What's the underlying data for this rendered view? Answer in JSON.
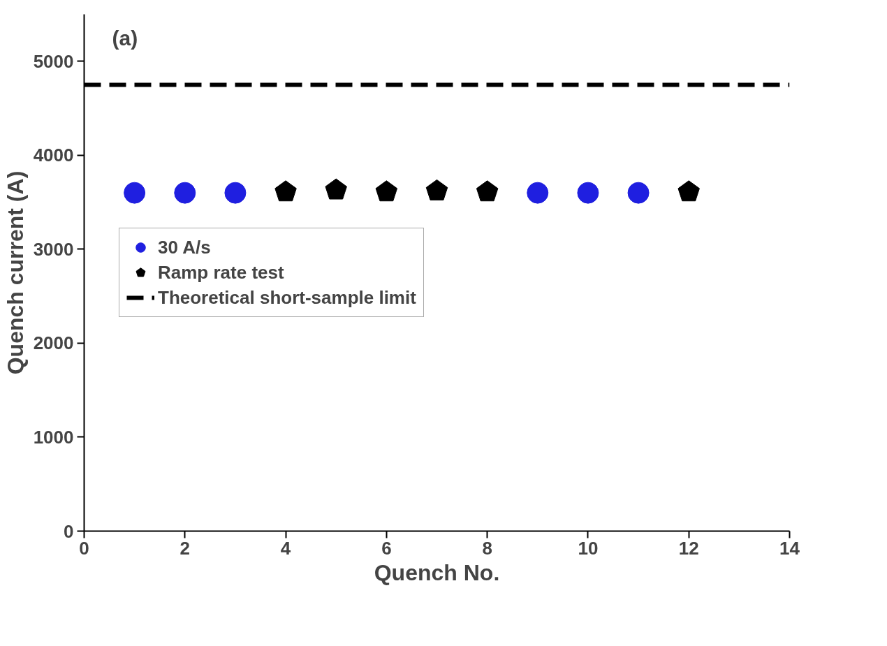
{
  "chart_data": {
    "type": "scatter",
    "xlabel": "Quench No.",
    "ylabel": "Quench current (A)",
    "annotations": [
      "(a)"
    ],
    "xlim": [
      0,
      14
    ],
    "xticks": [
      0,
      2,
      4,
      6,
      8,
      10,
      12,
      14
    ],
    "ylim": [
      0,
      5500
    ],
    "yticks": [
      0,
      1000,
      2000,
      3000,
      4000,
      5000
    ],
    "series": [
      {
        "name": "30 A/s",
        "color": "#1f1fe0",
        "marker": "circle",
        "x": [
          1,
          2,
          3,
          9,
          10,
          11
        ],
        "values": [
          3600,
          3600,
          3600,
          3600,
          3600,
          3600
        ]
      },
      {
        "name": "Ramp rate test",
        "color": "#000000",
        "x": [
          4,
          5,
          6,
          7,
          8,
          12
        ],
        "values": [
          3610,
          3630,
          3610,
          3620,
          3610,
          3610
        ]
      }
    ],
    "ref_lines": [
      {
        "axis": "y",
        "value": 4750,
        "label": "Theoretical short-sample limit",
        "color": "#000000",
        "line_style": "dashed"
      }
    ],
    "legend": "left",
    "grid": false
  }
}
